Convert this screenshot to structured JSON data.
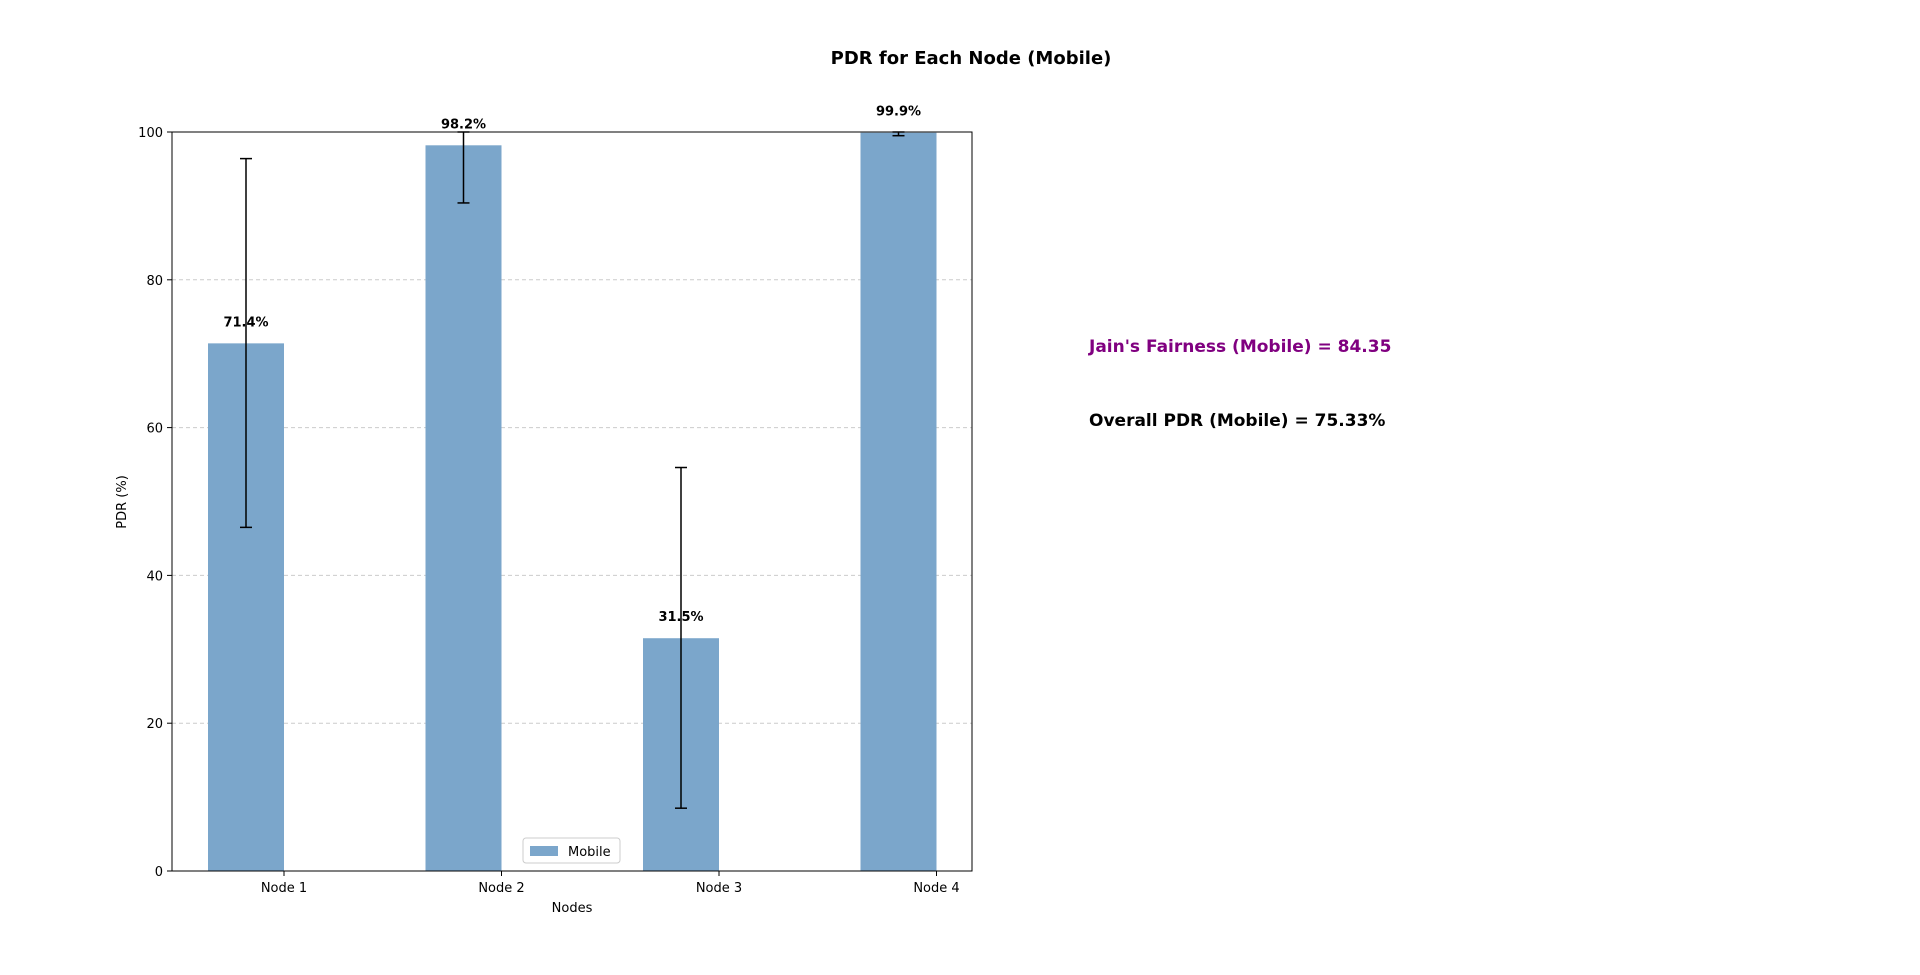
{
  "chart_data": {
    "type": "bar",
    "title": "PDR for Each Node (Mobile)",
    "xlabel": "Nodes",
    "ylabel": "PDR (%)",
    "ylim": [
      0,
      100
    ],
    "yticks": [
      0,
      20,
      40,
      60,
      80,
      100
    ],
    "grid": "y-dashed",
    "legend_position": "lower-center",
    "categories": [
      "Node 1",
      "Node 2",
      "Node 3",
      "Node 4"
    ],
    "series": [
      {
        "name": "Mobile",
        "color": "#7BA6CB",
        "values": [
          71.4,
          98.2,
          31.5,
          99.9
        ],
        "error_low": [
          46.5,
          90.4,
          8.5,
          99.5
        ],
        "error_high": [
          96.4,
          100,
          54.6,
          100
        ]
      }
    ],
    "data_labels": [
      "71.4%",
      "98.2%",
      "31.5%",
      "99.9%"
    ]
  },
  "annotations": [
    {
      "text": "Jain's Fairness (Mobile) = 84.35",
      "color": "#800080"
    },
    {
      "text": "Overall PDR (Mobile) = 75.33%",
      "color": "#000000"
    }
  ]
}
